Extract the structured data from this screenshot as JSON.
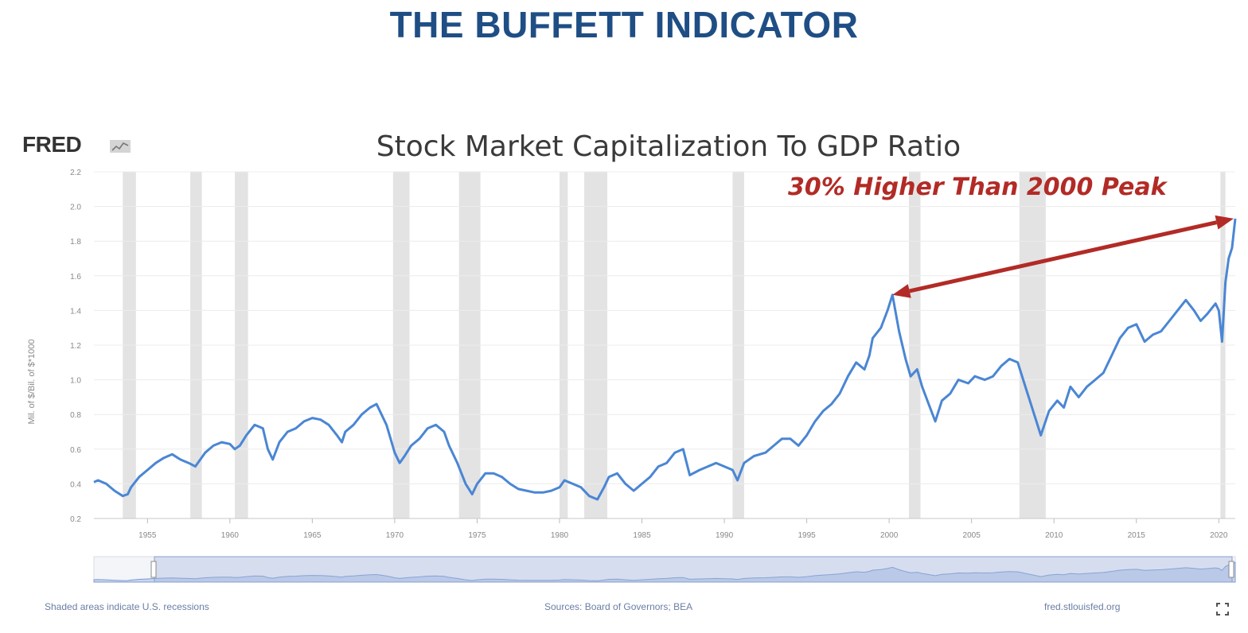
{
  "page": {
    "title": "THE BUFFETT INDICATOR"
  },
  "chart_header": {
    "logo_text": "FRED",
    "logo_icon": "chart-line-icon"
  },
  "footer": {
    "left_note": "Shaded areas indicate U.S. recessions",
    "source": "Sources: Board of Governors; BEA",
    "site": "fred.stlouisfed.org",
    "fullscreen_icon": "fullscreen-icon"
  },
  "colors": {
    "title": "#1f4e85",
    "line": "#4a86d4",
    "recession": "#e3e3e3",
    "annotation": "#b22b26",
    "navigator_fill": "#c9d6ee"
  },
  "chart_data": {
    "type": "line",
    "title": "Stock Market Capitalization To GDP Ratio",
    "ylabel": "Mil. of $/Bil. of $*1000",
    "xlabel": "",
    "xlim": [
      1951.75,
      2021.0
    ],
    "ylim": [
      0.2,
      2.2
    ],
    "yticks": [
      "0.2",
      "0.4",
      "0.6",
      "0.8",
      "1.0",
      "1.2",
      "1.4",
      "1.6",
      "1.8",
      "2.0",
      "2.2"
    ],
    "ytick_values": [
      0.2,
      0.4,
      0.6,
      0.8,
      1.0,
      1.2,
      1.4,
      1.6,
      1.8,
      2.0,
      2.2
    ],
    "xticks": [
      "1955",
      "1960",
      "1965",
      "1970",
      "1975",
      "1980",
      "1985",
      "1990",
      "1995",
      "2000",
      "2005",
      "2010",
      "2015",
      "2020"
    ],
    "xtick_values": [
      1955,
      1960,
      1965,
      1970,
      1975,
      1980,
      1985,
      1990,
      1995,
      2000,
      2005,
      2010,
      2015,
      2020
    ],
    "grid": true,
    "recessions": [
      [
        1953.5,
        1954.3
      ],
      [
        1957.6,
        1958.3
      ],
      [
        1960.3,
        1961.1
      ],
      [
        1969.9,
        1970.9
      ],
      [
        1973.9,
        1975.2
      ],
      [
        1980.0,
        1980.5
      ],
      [
        1981.5,
        1982.9
      ],
      [
        1990.5,
        1991.2
      ],
      [
        2001.2,
        2001.9
      ],
      [
        2007.9,
        2009.5
      ],
      [
        2020.1,
        2020.4
      ]
    ],
    "annotation": {
      "text": "30% Higher Than 2000 Peak",
      "from": [
        2000.2,
        1.49
      ],
      "to": [
        2020.9,
        1.93
      ]
    },
    "series": [
      {
        "x": [
          1951.75,
          1952.0,
          1952.5,
          1953.0,
          1953.5,
          1953.8,
          1954.0,
          1954.5,
          1955.0,
          1955.5,
          1956.0,
          1956.5,
          1957.0,
          1957.5,
          1957.9,
          1958.5,
          1959.0,
          1959.5,
          1960.0,
          1960.3,
          1960.6,
          1961.0,
          1961.5,
          1962.0,
          1962.3,
          1962.6,
          1963.0,
          1963.5,
          1964.0,
          1964.5,
          1965.0,
          1965.5,
          1966.0,
          1966.5,
          1966.8,
          1967.0,
          1967.5,
          1968.0,
          1968.5,
          1968.9,
          1969.5,
          1970.0,
          1970.3,
          1970.6,
          1971.0,
          1971.5,
          1972.0,
          1972.5,
          1973.0,
          1973.3,
          1973.8,
          1974.3,
          1974.7,
          1975.0,
          1975.5,
          1976.0,
          1976.5,
          1977.0,
          1977.5,
          1978.0,
          1978.5,
          1979.0,
          1979.5,
          1980.0,
          1980.3,
          1980.8,
          1981.3,
          1981.8,
          1982.3,
          1982.7,
          1983.0,
          1983.5,
          1984.0,
          1984.5,
          1985.0,
          1985.5,
          1986.0,
          1986.5,
          1987.0,
          1987.5,
          1987.9,
          1988.5,
          1989.0,
          1989.5,
          1990.0,
          1990.5,
          1990.8,
          1991.2,
          1991.8,
          1992.5,
          1993.0,
          1993.5,
          1994.0,
          1994.5,
          1995.0,
          1995.5,
          1996.0,
          1996.5,
          1997.0,
          1997.5,
          1998.0,
          1998.5,
          1998.8,
          1999.0,
          1999.5,
          1999.9,
          2000.2,
          2000.6,
          2001.0,
          2001.3,
          2001.7,
          2002.0,
          2002.4,
          2002.8,
          2003.2,
          2003.7,
          2004.2,
          2004.8,
          2005.2,
          2005.8,
          2006.3,
          2006.8,
          2007.3,
          2007.8,
          2008.3,
          2008.8,
          2009.2,
          2009.7,
          2010.2,
          2010.6,
          2011.0,
          2011.5,
          2012.0,
          2012.5,
          2013.0,
          2013.5,
          2014.0,
          2014.5,
          2015.0,
          2015.5,
          2016.0,
          2016.5,
          2017.0,
          2017.5,
          2018.0,
          2018.5,
          2018.9,
          2019.3,
          2019.8,
          2020.0,
          2020.2,
          2020.4,
          2020.6,
          2020.8,
          2021.0
        ],
        "values": [
          0.41,
          0.42,
          0.4,
          0.36,
          0.33,
          0.34,
          0.38,
          0.44,
          0.48,
          0.52,
          0.55,
          0.57,
          0.54,
          0.52,
          0.5,
          0.58,
          0.62,
          0.64,
          0.63,
          0.6,
          0.62,
          0.68,
          0.74,
          0.72,
          0.6,
          0.54,
          0.64,
          0.7,
          0.72,
          0.76,
          0.78,
          0.77,
          0.74,
          0.68,
          0.64,
          0.7,
          0.74,
          0.8,
          0.84,
          0.86,
          0.74,
          0.58,
          0.52,
          0.56,
          0.62,
          0.66,
          0.72,
          0.74,
          0.7,
          0.62,
          0.52,
          0.4,
          0.34,
          0.4,
          0.46,
          0.46,
          0.44,
          0.4,
          0.37,
          0.36,
          0.35,
          0.35,
          0.36,
          0.38,
          0.42,
          0.4,
          0.38,
          0.33,
          0.31,
          0.38,
          0.44,
          0.46,
          0.4,
          0.36,
          0.4,
          0.44,
          0.5,
          0.52,
          0.58,
          0.6,
          0.45,
          0.48,
          0.5,
          0.52,
          0.5,
          0.48,
          0.42,
          0.52,
          0.56,
          0.58,
          0.62,
          0.66,
          0.66,
          0.62,
          0.68,
          0.76,
          0.82,
          0.86,
          0.92,
          1.02,
          1.1,
          1.06,
          1.14,
          1.24,
          1.3,
          1.4,
          1.49,
          1.28,
          1.12,
          1.02,
          1.06,
          0.96,
          0.86,
          0.76,
          0.88,
          0.92,
          1.0,
          0.98,
          1.02,
          1.0,
          1.02,
          1.08,
          1.12,
          1.1,
          0.95,
          0.8,
          0.68,
          0.82,
          0.88,
          0.84,
          0.96,
          0.9,
          0.96,
          1.0,
          1.04,
          1.14,
          1.24,
          1.3,
          1.32,
          1.22,
          1.26,
          1.28,
          1.34,
          1.4,
          1.46,
          1.4,
          1.34,
          1.38,
          1.44,
          1.4,
          1.22,
          1.56,
          1.7,
          1.76,
          1.93
        ]
      }
    ]
  }
}
